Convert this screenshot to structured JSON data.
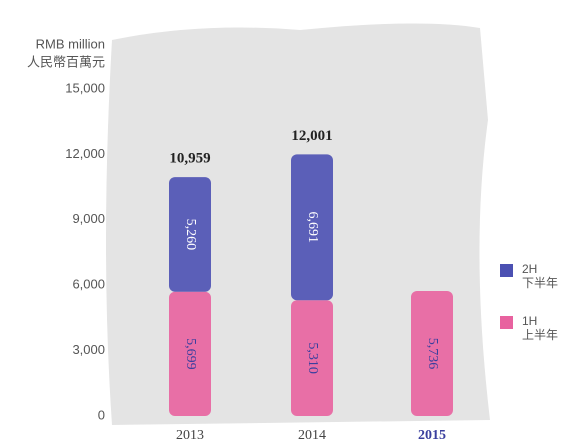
{
  "chart_data": {
    "type": "stacked-bar",
    "y_label": "RMB million",
    "y_label_zh": "人民幣百萬元",
    "categories": [
      "2013",
      "2014",
      "2015"
    ],
    "series": [
      {
        "name": "1H",
        "name_zh": "上半年",
        "color": "#e8629f",
        "values": [
          5699,
          5310,
          5736
        ],
        "value_labels": [
          "5,699",
          "5,310",
          "5,736"
        ]
      },
      {
        "name": "2H",
        "name_zh": "下半年",
        "color": "#4b50b2",
        "values": [
          5260,
          6691,
          null
        ],
        "value_labels": [
          "5,260",
          "6,691",
          null
        ]
      }
    ],
    "totals": [
      10959,
      12001,
      null
    ],
    "total_labels": [
      "10,959",
      "12,001",
      null
    ],
    "ylim": [
      0,
      15000
    ],
    "yticks": [
      0,
      {
        "value": 3000,
        "label": "3,000"
      },
      {
        "value": 6000,
        "label": "6,000"
      },
      {
        "value": 9000,
        "label": "9,000"
      },
      {
        "value": 12000,
        "label": "12,000"
      },
      {
        "value": 15000,
        "label": "15,000"
      }
    ],
    "highlight_category": 2,
    "highlight_color": "#3a3f9e"
  }
}
